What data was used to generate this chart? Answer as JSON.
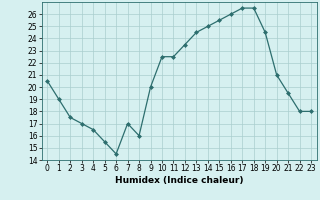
{
  "x": [
    0,
    1,
    2,
    3,
    4,
    5,
    6,
    7,
    8,
    9,
    10,
    11,
    12,
    13,
    14,
    15,
    16,
    17,
    18,
    19,
    20,
    21,
    22,
    23
  ],
  "y": [
    20.5,
    19.0,
    17.5,
    17.0,
    16.5,
    15.5,
    14.5,
    17.0,
    16.0,
    20.0,
    22.5,
    22.5,
    23.5,
    24.5,
    25.0,
    25.5,
    26.0,
    26.5,
    26.5,
    24.5,
    21.0,
    19.5,
    18.0,
    18.0
  ],
  "line_color": "#2d6e6e",
  "marker": "D",
  "marker_size": 2,
  "bg_color": "#d6f0f0",
  "grid_color": "#aacece",
  "xlabel": "Humidex (Indice chaleur)",
  "ylim": [
    14,
    27
  ],
  "xlim": [
    -0.5,
    23.5
  ],
  "yticks": [
    14,
    15,
    16,
    17,
    18,
    19,
    20,
    21,
    22,
    23,
    24,
    25,
    26
  ],
  "xticks": [
    0,
    1,
    2,
    3,
    4,
    5,
    6,
    7,
    8,
    9,
    10,
    11,
    12,
    13,
    14,
    15,
    16,
    17,
    18,
    19,
    20,
    21,
    22,
    23
  ],
  "label_fontsize": 6.5,
  "tick_fontsize": 5.5
}
